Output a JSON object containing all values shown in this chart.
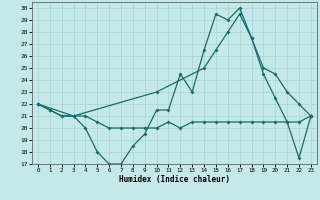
{
  "xlabel": "Humidex (Indice chaleur)",
  "bg_color": "#c5e8e8",
  "line_color": "#1a6b6b",
  "grid_color": "#a8d4d4",
  "xlim": [
    -0.5,
    23.5
  ],
  "ylim": [
    17,
    30.5
  ],
  "yticks": [
    17,
    18,
    19,
    20,
    21,
    22,
    23,
    24,
    25,
    26,
    27,
    28,
    29,
    30
  ],
  "xticks": [
    0,
    1,
    2,
    3,
    4,
    5,
    6,
    7,
    8,
    9,
    10,
    11,
    12,
    13,
    14,
    15,
    16,
    17,
    18,
    19,
    20,
    21,
    22,
    23
  ],
  "line1_x": [
    0,
    1,
    2,
    3,
    4,
    5,
    6,
    7,
    8,
    9,
    10,
    11,
    12,
    13,
    14,
    15,
    16,
    17,
    18,
    19,
    20,
    21,
    22,
    23
  ],
  "line1_y": [
    22.0,
    21.5,
    21.0,
    21.0,
    21.0,
    20.5,
    20.0,
    20.0,
    20.0,
    20.0,
    20.0,
    20.5,
    20.0,
    20.5,
    20.5,
    20.5,
    20.5,
    20.5,
    20.5,
    20.5,
    20.5,
    20.5,
    20.5,
    21.0
  ],
  "line2_x": [
    0,
    1,
    2,
    3,
    4,
    5,
    6,
    7,
    8,
    9,
    10,
    11,
    12,
    13,
    14,
    15,
    16,
    17,
    18,
    19,
    20,
    21,
    22,
    23
  ],
  "line2_y": [
    22.0,
    21.5,
    21.0,
    21.0,
    20.0,
    18.0,
    17.0,
    17.0,
    18.5,
    19.5,
    21.5,
    21.5,
    24.5,
    23.0,
    26.5,
    29.5,
    29.0,
    30.0,
    27.5,
    25.0,
    24.5,
    23.0,
    22.0,
    21.0
  ],
  "line3_x": [
    0,
    3,
    10,
    14,
    15,
    16,
    17,
    18,
    19,
    20,
    21,
    22,
    23
  ],
  "line3_y": [
    22.0,
    21.0,
    23.0,
    25.0,
    26.5,
    28.0,
    29.5,
    27.5,
    24.5,
    22.5,
    20.5,
    17.5,
    21.0
  ]
}
